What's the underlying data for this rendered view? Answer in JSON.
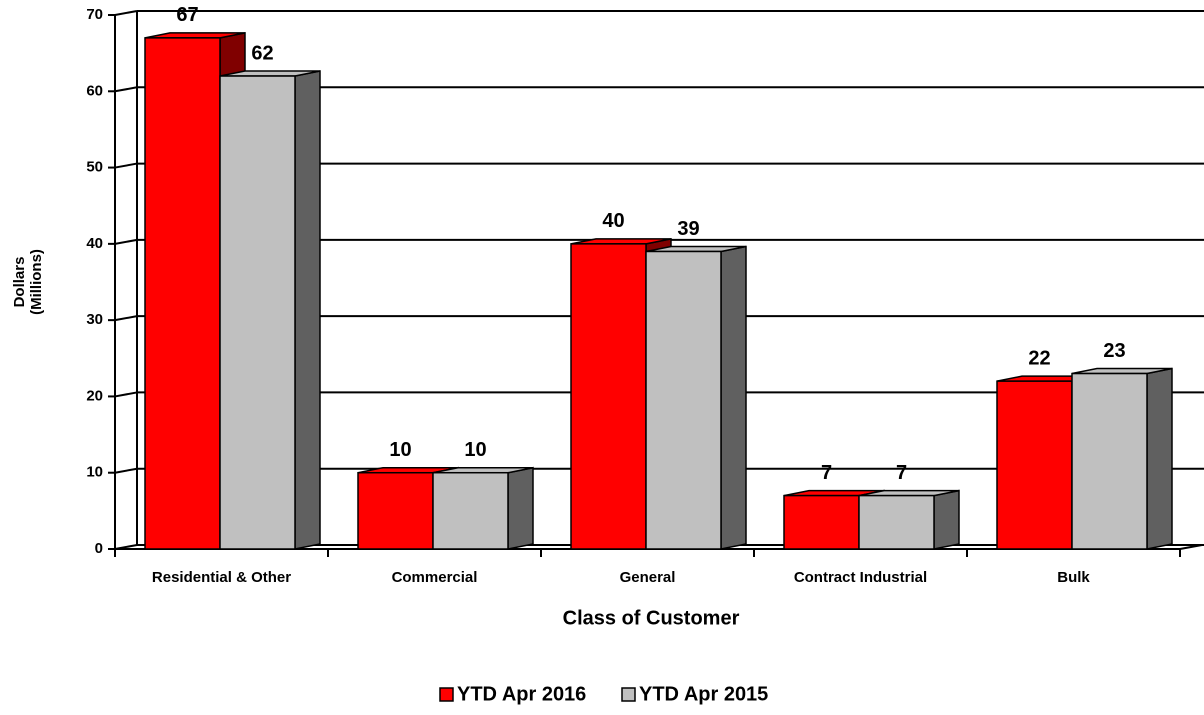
{
  "chart_data": {
    "type": "bar",
    "categories": [
      "Residential & Other",
      "Commercial",
      "General",
      "Contract Industrial",
      "Bulk"
    ],
    "series": [
      {
        "name": "YTD Apr 2016",
        "color": "#ff0000",
        "side_color": "#800000",
        "values": [
          67,
          10,
          40,
          7,
          22
        ]
      },
      {
        "name": "YTD Apr 2015",
        "color": "#c0c0c0",
        "side_color": "#606060",
        "values": [
          62,
          10,
          39,
          7,
          23
        ]
      }
    ],
    "ylim": [
      0,
      70
    ],
    "yticks": [
      0,
      10,
      20,
      30,
      40,
      50,
      60,
      70
    ],
    "grid": true,
    "ylabel": [
      "Dollars",
      "(Millions)"
    ],
    "xlabel": "Class of Customer",
    "legend": "bottom"
  }
}
